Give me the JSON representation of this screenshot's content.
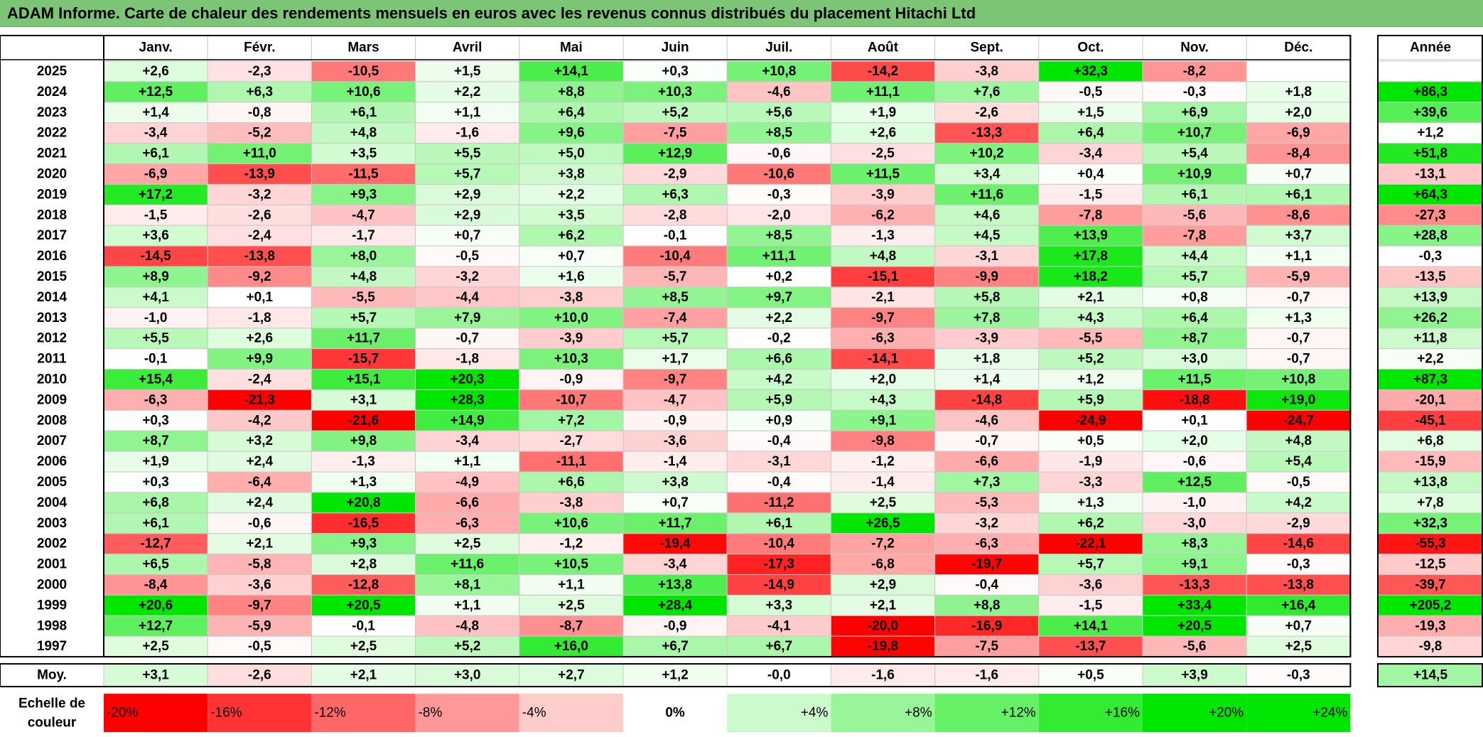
{
  "title": "ADAM Informe. Carte de chaleur des rendements mensuels en euros avec les revenus connus distribués du placement Hitachi Ltd",
  "chart_data": {
    "type": "heatmap",
    "months": [
      "Janv.",
      "Févr.",
      "Mars",
      "Avril",
      "Mai",
      "Juin",
      "Juil.",
      "Août",
      "Sept.",
      "Oct.",
      "Nov.",
      "Déc."
    ],
    "year_column_header": "Année",
    "rows": [
      {
        "year": "2025",
        "values": [
          "+2,6",
          "-2,3",
          "-10,5",
          "+1,5",
          "+14,1",
          "+0,3",
          "+10,8",
          "-14,2",
          "-3,8",
          "+32,3",
          "-8,2",
          ""
        ],
        "annual": ""
      },
      {
        "year": "2024",
        "values": [
          "+12,5",
          "+6,3",
          "+10,6",
          "+2,2",
          "+8,8",
          "+10,3",
          "-4,6",
          "+11,1",
          "+7,6",
          "-0,5",
          "-0,3",
          "+1,8"
        ],
        "annual": "+86,3"
      },
      {
        "year": "2023",
        "values": [
          "+1,4",
          "-0,8",
          "+6,1",
          "+1,1",
          "+6,4",
          "+5,2",
          "+5,6",
          "+1,9",
          "-2,6",
          "+1,5",
          "+6,9",
          "+2,0"
        ],
        "annual": "+39,6"
      },
      {
        "year": "2022",
        "values": [
          "-3,4",
          "-5,2",
          "+4,8",
          "-1,6",
          "+9,6",
          "-7,5",
          "+8,5",
          "+2,6",
          "-13,3",
          "+6,4",
          "+10,7",
          "-6,9"
        ],
        "annual": "+1,2"
      },
      {
        "year": "2021",
        "values": [
          "+6,1",
          "+11,0",
          "+3,5",
          "+5,5",
          "+5,0",
          "+12,9",
          "-0,6",
          "-2,5",
          "+10,2",
          "-3,4",
          "+5,4",
          "-8,4"
        ],
        "annual": "+51,8"
      },
      {
        "year": "2020",
        "values": [
          "-6,9",
          "-13,9",
          "-11,5",
          "+5,7",
          "+3,8",
          "-2,9",
          "-10,6",
          "+11,5",
          "+3,4",
          "+0,4",
          "+10,9",
          "+0,7"
        ],
        "annual": "-13,1"
      },
      {
        "year": "2019",
        "values": [
          "+17,2",
          "-3,2",
          "+9,3",
          "+2,9",
          "+2,2",
          "+6,3",
          "-0,3",
          "-3,9",
          "+11,6",
          "-1,5",
          "+6,1",
          "+6,1"
        ],
        "annual": "+64,3"
      },
      {
        "year": "2018",
        "values": [
          "-1,5",
          "-2,6",
          "-4,7",
          "+2,9",
          "+3,5",
          "-2,8",
          "-2,0",
          "-6,2",
          "+4,6",
          "-7,8",
          "-5,6",
          "-8,6"
        ],
        "annual": "-27,3"
      },
      {
        "year": "2017",
        "values": [
          "+3,6",
          "-2,4",
          "-1,7",
          "+0,7",
          "+6,2",
          "-0,1",
          "+8,5",
          "-1,3",
          "+4,5",
          "+13,9",
          "-7,8",
          "+3,7"
        ],
        "annual": "+28,8"
      },
      {
        "year": "2016",
        "values": [
          "-14,5",
          "-13,8",
          "+8,0",
          "-0,5",
          "+0,7",
          "-10,4",
          "+11,1",
          "+4,8",
          "-3,1",
          "+17,8",
          "+4,4",
          "+1,1"
        ],
        "annual": "-0,3"
      },
      {
        "year": "2015",
        "values": [
          "+8,9",
          "-9,2",
          "+4,8",
          "-3,2",
          "+1,6",
          "-5,7",
          "+0,2",
          "-15,1",
          "-9,9",
          "+18,2",
          "+5,7",
          "-5,9"
        ],
        "annual": "-13,5"
      },
      {
        "year": "2014",
        "values": [
          "+4,1",
          "+0,1",
          "-5,5",
          "-4,4",
          "-3,8",
          "+8,5",
          "+9,7",
          "-2,1",
          "+5,8",
          "+2,1",
          "+0,8",
          "-0,7"
        ],
        "annual": "+13,9"
      },
      {
        "year": "2013",
        "values": [
          "-1,0",
          "-1,8",
          "+5,7",
          "+7,9",
          "+10,0",
          "-7,4",
          "+2,2",
          "-9,7",
          "+7,8",
          "+4,3",
          "+6,4",
          "+1,3"
        ],
        "annual": "+26,2"
      },
      {
        "year": "2012",
        "values": [
          "+5,5",
          "+2,6",
          "+11,7",
          "-0,7",
          "-3,9",
          "+5,7",
          "-0,2",
          "-6,3",
          "-3,9",
          "-5,5",
          "+8,7",
          "-0,7"
        ],
        "annual": "+11,8"
      },
      {
        "year": "2011",
        "values": [
          "-0,1",
          "+9,9",
          "-15,7",
          "-1,8",
          "+10,3",
          "+1,7",
          "+6,6",
          "-14,1",
          "+1,8",
          "+5,2",
          "+3,0",
          "-0,7"
        ],
        "annual": "+2,2"
      },
      {
        "year": "2010",
        "values": [
          "+15,4",
          "-2,4",
          "+15,1",
          "+20,3",
          "-0,9",
          "-9,7",
          "+4,2",
          "+2,0",
          "+1,4",
          "+1,2",
          "+11,5",
          "+10,8"
        ],
        "annual": "+87,3"
      },
      {
        "year": "2009",
        "values": [
          "-6,3",
          "-21,3",
          "+3,1",
          "+28,3",
          "-10,7",
          "-4,7",
          "+5,9",
          "+4,3",
          "-14,8",
          "+5,9",
          "-18,8",
          "+19,0"
        ],
        "annual": "-20,1"
      },
      {
        "year": "2008",
        "values": [
          "+0,3",
          "-4,2",
          "-21,6",
          "+14,9",
          "+7,2",
          "-0,9",
          "+0,9",
          "+9,1",
          "-4,6",
          "-24,9",
          "+0,1",
          "-24,7"
        ],
        "annual": "-45,1"
      },
      {
        "year": "2007",
        "values": [
          "+8,7",
          "+3,2",
          "+9,8",
          "-3,4",
          "-2,7",
          "-3,6",
          "-0,4",
          "-9,8",
          "-0,7",
          "+0,5",
          "+2,0",
          "+4,8"
        ],
        "annual": "+6,8"
      },
      {
        "year": "2006",
        "values": [
          "+1,9",
          "+2,4",
          "-1,3",
          "+1,1",
          "-11,1",
          "-1,4",
          "-3,1",
          "-1,2",
          "-6,6",
          "-1,9",
          "-0,6",
          "+5,4"
        ],
        "annual": "-15,9"
      },
      {
        "year": "2005",
        "values": [
          "+0,3",
          "-6,4",
          "+1,3",
          "-4,9",
          "+6,6",
          "+3,8",
          "-0,4",
          "-1,4",
          "+7,3",
          "-3,3",
          "+12,5",
          "-0,5"
        ],
        "annual": "+13,8"
      },
      {
        "year": "2004",
        "values": [
          "+6,8",
          "+2,4",
          "+20,8",
          "-6,6",
          "-3,8",
          "+0,7",
          "-11,2",
          "+2,5",
          "-5,3",
          "+1,3",
          "-1,0",
          "+4,2"
        ],
        "annual": "+7,8"
      },
      {
        "year": "2003",
        "values": [
          "+6,1",
          "-0,6",
          "-16,5",
          "-6,3",
          "+10,6",
          "+11,7",
          "+6,1",
          "+26,5",
          "-3,2",
          "+6,2",
          "-3,0",
          "-2,9"
        ],
        "annual": "+32,3"
      },
      {
        "year": "2002",
        "values": [
          "-12,7",
          "+2,1",
          "+9,3",
          "+2,5",
          "-1,2",
          "-19,4",
          "-10,4",
          "-7,2",
          "-6,3",
          "-22,1",
          "+8,3",
          "-14,6"
        ],
        "annual": "-55,3"
      },
      {
        "year": "2001",
        "values": [
          "+6,5",
          "-5,8",
          "+2,8",
          "+11,6",
          "+10,5",
          "-3,4",
          "-17,3",
          "-6,8",
          "-19,7",
          "+5,7",
          "+9,1",
          "-0,3"
        ],
        "annual": "-12,5"
      },
      {
        "year": "2000",
        "values": [
          "-8,4",
          "-3,6",
          "-12,8",
          "+8,1",
          "+1,1",
          "+13,8",
          "-14,9",
          "+2,9",
          "-0,4",
          "-3,6",
          "-13,3",
          "-13,8"
        ],
        "annual": "-39,7"
      },
      {
        "year": "1999",
        "values": [
          "+20,6",
          "-9,7",
          "+20,5",
          "+1,1",
          "+2,5",
          "+28,4",
          "+3,3",
          "+2,1",
          "+8,8",
          "-1,5",
          "+33,4",
          "+16,4"
        ],
        "annual": "+205,2"
      },
      {
        "year": "1998",
        "values": [
          "+12,7",
          "-5,9",
          "-0,1",
          "-4,8",
          "-8,7",
          "-0,9",
          "-4,1",
          "-20,0",
          "-16,9",
          "+14,1",
          "+20,5",
          "+0,7"
        ],
        "annual": "-19,3"
      },
      {
        "year": "1997",
        "values": [
          "+2,5",
          "-0,5",
          "+2,5",
          "+5,2",
          "+16,0",
          "+6,7",
          "+6,7",
          "-19,8",
          "-7,5",
          "-13,7",
          "-5,6",
          "+2,5"
        ],
        "annual": "-9,8"
      }
    ],
    "average_row": {
      "label": "Moy.",
      "values": [
        "+3,1",
        "-2,6",
        "+2,1",
        "+3,0",
        "+2,7",
        "+1,2",
        "-0,0",
        "-1,6",
        "-1,6",
        "+0,5",
        "+3,9",
        "-0,3"
      ],
      "annual": "+14,5"
    },
    "color_scale": {
      "label_line1": "Echelle de",
      "label_line2": "couleur",
      "steps": [
        {
          "label": "-20%",
          "value": -20
        },
        {
          "label": "-16%",
          "value": -16
        },
        {
          "label": "-12%",
          "value": -12
        },
        {
          "label": "-8%",
          "value": -8
        },
        {
          "label": "-4%",
          "value": -4
        },
        {
          "label": "0%",
          "value": 0
        },
        {
          "label": "+4%",
          "value": 4
        },
        {
          "label": "+8%",
          "value": 8
        },
        {
          "label": "+12%",
          "value": 12
        },
        {
          "label": "+16%",
          "value": 16
        },
        {
          "label": "+20%",
          "value": 20
        },
        {
          "label": "+24%",
          "value": 24
        }
      ]
    },
    "colors": {
      "negative_max": "#ff0000",
      "neutral": "#ffffff",
      "positive_max": "#00e600",
      "title_background": "#7cc576"
    }
  }
}
